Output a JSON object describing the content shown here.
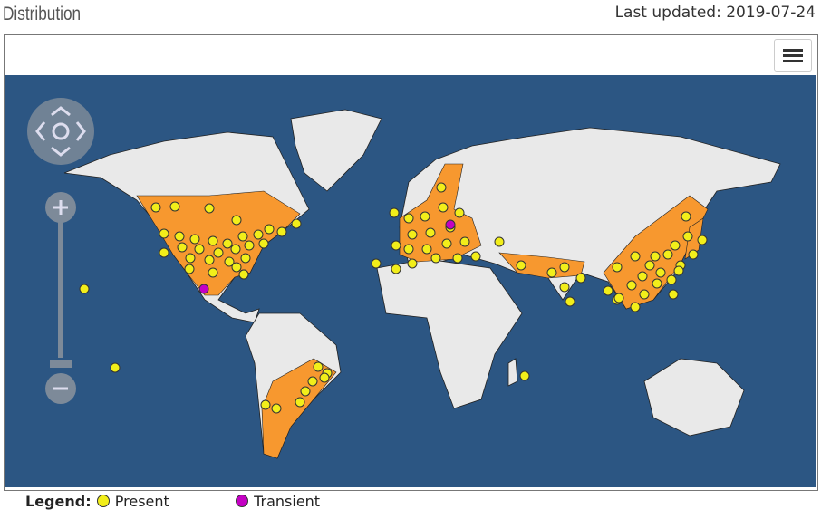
{
  "header": {
    "title": "Distribution",
    "updated": "Last updated: 2019-07-24"
  },
  "legend": {
    "label": "Legend:",
    "items": [
      {
        "name": "Present",
        "color": "#f2ee1a"
      },
      {
        "name": "Transient",
        "color": "#c400c4"
      }
    ]
  }
}
